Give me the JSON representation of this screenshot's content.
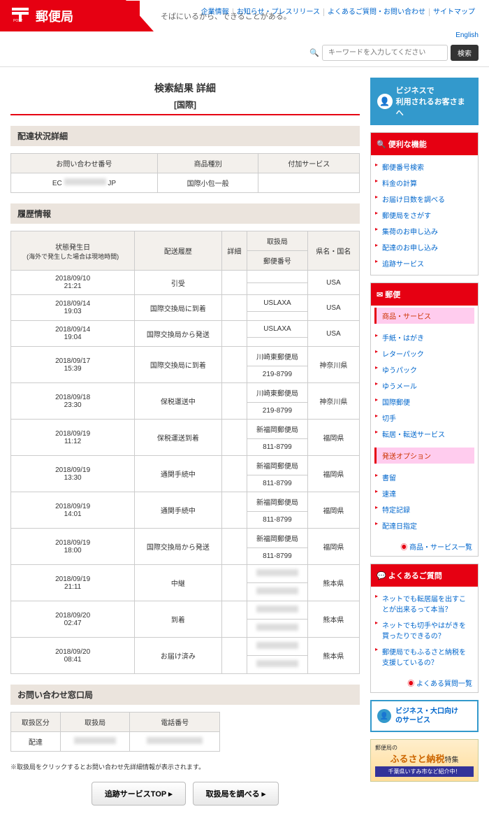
{
  "header": {
    "brand": "郵便局",
    "tagline": "そばにいるから、できることがある。",
    "nav": [
      "企業情報",
      "お知らせ・プレスリリース",
      "よくあるご質問・お問い合わせ",
      "サイトマップ"
    ],
    "english": "English",
    "search_placeholder": "キーワードを入力してください",
    "search_btn": "検索"
  },
  "page": {
    "title": "検索結果 詳細",
    "subtitle": "[国際]"
  },
  "section1": {
    "header": "配達状況詳細",
    "cols": [
      "お問い合わせ番号",
      "商品種別",
      "付加サービス"
    ],
    "row": {
      "num_pre": "EC",
      "num_post": "JP",
      "type": "国際小包一般",
      "service": ""
    }
  },
  "section2": {
    "header": "履歴情報",
    "cols": {
      "date": "状態発生日",
      "date_sub": "(海外で発生した場合は現地時間)",
      "history": "配送履歴",
      "detail": "詳細",
      "office": "取扱局",
      "postal": "郵便番号",
      "pref": "県名・国名"
    },
    "rows": [
      {
        "date": "2018/09/10",
        "time": "21:21",
        "hist": "引受",
        "office": "",
        "postal": "",
        "pref": "USA"
      },
      {
        "date": "2018/09/14",
        "time": "19:03",
        "hist": "国際交換局に到着",
        "office": "USLAXA",
        "postal": "",
        "pref": "USA"
      },
      {
        "date": "2018/09/14",
        "time": "19:04",
        "hist": "国際交換局から発送",
        "office": "USLAXA",
        "postal": "",
        "pref": "USA"
      },
      {
        "date": "2018/09/17",
        "time": "15:39",
        "hist": "国際交換局に到着",
        "office": "川崎東郵便局",
        "postal": "219-8799",
        "pref": "神奈川県"
      },
      {
        "date": "2018/09/18",
        "time": "23:30",
        "hist": "保税運送中",
        "office": "川崎東郵便局",
        "postal": "219-8799",
        "pref": "神奈川県"
      },
      {
        "date": "2018/09/19",
        "time": "11:12",
        "hist": "保税運送到着",
        "office": "新福岡郵便局",
        "postal": "811-8799",
        "pref": "福岡県"
      },
      {
        "date": "2018/09/19",
        "time": "13:30",
        "hist": "通関手続中",
        "office": "新福岡郵便局",
        "postal": "811-8799",
        "pref": "福岡県"
      },
      {
        "date": "2018/09/19",
        "time": "14:01",
        "hist": "通関手続中",
        "office": "新福岡郵便局",
        "postal": "811-8799",
        "pref": "福岡県"
      },
      {
        "date": "2018/09/19",
        "time": "18:00",
        "hist": "国際交換局から発送",
        "office": "新福岡郵便局",
        "postal": "811-8799",
        "pref": "福岡県"
      },
      {
        "date": "2018/09/19",
        "time": "21:11",
        "hist": "中継",
        "office": "_censored_",
        "postal": "_censored_",
        "pref": "熊本県"
      },
      {
        "date": "2018/09/20",
        "time": "02:47",
        "hist": "到着",
        "office": "_censored_",
        "postal": "_censored_",
        "pref": "熊本県"
      },
      {
        "date": "2018/09/20",
        "time": "08:41",
        "hist": "お届け済み",
        "office": "_censored_",
        "postal": "_censored_",
        "pref": "熊本県"
      }
    ]
  },
  "section3": {
    "header": "お問い合わせ窓口局",
    "cols": [
      "取扱区分",
      "取扱局",
      "電話番号"
    ],
    "row": {
      "type": "配達"
    },
    "note": "※取扱局をクリックするとお問い合わせ先詳細情報が表示されます。"
  },
  "buttons": {
    "top": "追跡サービスTOP",
    "search": "取扱局を調べる"
  },
  "sidebar": {
    "biz1": {
      "l1": "ビジネスで",
      "l2": "利用されるお客さまへ"
    },
    "box1": {
      "header": "便利な機能",
      "items": [
        "郵便番号検索",
        "料金の計算",
        "お届け日数を調べる",
        "郵便局をさがす",
        "集荷のお申し込み",
        "配達のお申し込み",
        "追跡サービス"
      ]
    },
    "box2": {
      "header": "郵便",
      "sub1": "商品・サービス",
      "items1": [
        "手紙・はがき",
        "レターパック",
        "ゆうパック",
        "ゆうメール",
        "国際郵便",
        "切手",
        "転居・転送サービス"
      ],
      "sub2": "発送オプション",
      "items2": [
        "書留",
        "速達",
        "特定記録",
        "配達日指定"
      ],
      "footer": "商品・サービス一覧"
    },
    "box3": {
      "header": "よくあるご質問",
      "items": [
        "ネットでも転居届を出すことが出来るって本当？",
        "ネットでも切手やはがきを買ったりできるの？",
        "郵便局でもふるさと納税を支援しているの？"
      ],
      "footer": "よくある質問一覧"
    },
    "biz2": {
      "l1": "ビジネス・大口向け",
      "l2": "のサービス"
    },
    "banner": {
      "pre": "郵便局の",
      "title": "ふるさと納税",
      "suf": "特集",
      "sub": "千葉県いすみ市など紹介中！"
    }
  }
}
